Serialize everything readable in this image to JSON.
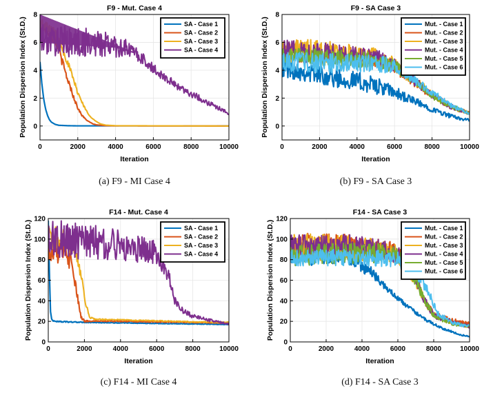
{
  "chart_data": [
    {
      "type": "line",
      "title": "F9 - Mut. Case 4",
      "caption": "(a) F9 - MI Case 4",
      "xlabel": "Iteration",
      "ylabel": "Population Dispersion Index (St.D.)",
      "xlim": [
        0,
        10000
      ],
      "ylim": [
        -1,
        8
      ],
      "xticks": [
        0,
        2000,
        4000,
        6000,
        8000,
        10000
      ],
      "yticks": [
        0,
        2,
        4,
        6,
        8
      ],
      "legend_position": "top-right",
      "series": [
        {
          "name": "SA - Case 1",
          "color": "#0072BD",
          "x": [
            0,
            100,
            200,
            300,
            400,
            500,
            600,
            800,
            1000,
            1500,
            2000,
            4000,
            10000
          ],
          "y": [
            4.6,
            3.0,
            1.9,
            1.2,
            0.75,
            0.45,
            0.28,
            0.12,
            0.05,
            0.02,
            0.01,
            0.01,
            0.01
          ],
          "noise": [
            0,
            0,
            0,
            0,
            0,
            0,
            0,
            0,
            0,
            0,
            0,
            0,
            0
          ]
        },
        {
          "name": "SA - Case 2",
          "color": "#D95319",
          "x": [
            0,
            400,
            800,
            1000,
            1200,
            1400,
            1600,
            1800,
            2000,
            2200,
            2400,
            2600,
            2800,
            3000,
            3400,
            4000,
            10000
          ],
          "y": [
            7.2,
            6.9,
            6.2,
            5.5,
            4.5,
            3.6,
            2.8,
            2.0,
            1.3,
            0.8,
            0.5,
            0.3,
            0.15,
            0.08,
            0.03,
            0.01,
            0.0
          ],
          "noise": [
            0.4,
            0.4,
            0.4,
            0.35,
            0.3,
            0.25,
            0.2,
            0.15,
            0.1,
            0.06,
            0.04,
            0.02,
            0.01,
            0,
            0,
            0,
            0
          ]
        },
        {
          "name": "SA - Case 3",
          "color": "#EDB120",
          "x": [
            0,
            400,
            800,
            1000,
            1200,
            1400,
            1600,
            1800,
            2000,
            2200,
            2400,
            2600,
            2800,
            3000,
            3200,
            3500,
            4000,
            10000
          ],
          "y": [
            7.4,
            7.0,
            6.6,
            6.2,
            5.6,
            4.8,
            4.0,
            3.2,
            2.4,
            1.8,
            1.2,
            0.8,
            0.5,
            0.3,
            0.15,
            0.06,
            0.02,
            0.0
          ],
          "noise": [
            0.5,
            0.45,
            0.45,
            0.4,
            0.35,
            0.3,
            0.25,
            0.2,
            0.15,
            0.1,
            0.08,
            0.05,
            0.03,
            0.02,
            0.01,
            0,
            0,
            0
          ]
        },
        {
          "name": "SA - Case 4",
          "color": "#7E2F8E",
          "x": [
            0,
            2000,
            4000,
            5000,
            6000,
            7000,
            8000,
            9000,
            10000
          ],
          "y": [
            6.2,
            6.0,
            5.8,
            5.3,
            4.1,
            3.1,
            2.3,
            1.6,
            0.9
          ],
          "noise": [
            1.1,
            1.1,
            0.9,
            0.5,
            0.35,
            0.3,
            0.25,
            0.2,
            0.1
          ],
          "band": {
            "x": [
              0,
              5000
            ],
            "top": [
              8.0,
              5.3
            ]
          }
        }
      ]
    },
    {
      "type": "line",
      "title": "F9 - SA Case 3",
      "caption": "(b) F9 - SA Case 3",
      "xlabel": "Iteration",
      "ylabel": "Population Dispersion Index (St.D.)",
      "xlim": [
        0,
        10000
      ],
      "ylim": [
        -1,
        8
      ],
      "xticks": [
        0,
        2000,
        4000,
        6000,
        8000,
        10000
      ],
      "yticks": [
        0,
        2,
        4,
        6,
        8
      ],
      "legend_position": "top-right",
      "series": [
        {
          "name": "Mut. - Case 1",
          "color": "#0072BD",
          "x": [
            0,
            2000,
            4000,
            5000,
            6000,
            7000,
            8000,
            9000,
            10000
          ],
          "y": [
            4.2,
            3.7,
            3.2,
            2.9,
            2.4,
            1.8,
            1.2,
            0.7,
            0.4
          ],
          "noise": [
            0.7,
            0.7,
            0.7,
            0.6,
            0.45,
            0.3,
            0.2,
            0.15,
            0.1
          ]
        },
        {
          "name": "Mut. - Case 2",
          "color": "#D95319",
          "x": [
            0,
            3000,
            5000,
            6000,
            7000,
            8000,
            9000,
            10000
          ],
          "y": [
            5.3,
            5.1,
            4.8,
            4.3,
            3.2,
            2.2,
            1.4,
            0.9
          ],
          "noise": [
            0.7,
            0.65,
            0.6,
            0.5,
            0.35,
            0.25,
            0.2,
            0.1
          ]
        },
        {
          "name": "Mut. - Case 3",
          "color": "#EDB120",
          "x": [
            0,
            3000,
            5000,
            6000,
            7000,
            8000,
            9000,
            10000
          ],
          "y": [
            5.5,
            5.2,
            4.9,
            4.4,
            3.3,
            2.3,
            1.4,
            0.9
          ],
          "noise": [
            0.9,
            0.8,
            0.7,
            0.55,
            0.35,
            0.25,
            0.2,
            0.1
          ]
        },
        {
          "name": "Mut. - Case 4",
          "color": "#7E2F8E",
          "x": [
            0,
            3000,
            5000,
            6000,
            7000,
            8000,
            9000,
            10000
          ],
          "y": [
            5.4,
            5.2,
            4.9,
            4.4,
            3.3,
            2.2,
            1.4,
            0.9
          ],
          "noise": [
            0.8,
            0.7,
            0.6,
            0.5,
            0.35,
            0.25,
            0.2,
            0.1
          ]
        },
        {
          "name": "Mut. - Case 5",
          "color": "#77AC30",
          "x": [
            0,
            3000,
            5000,
            6000,
            7000,
            8000,
            9000,
            10000
          ],
          "y": [
            5.0,
            4.9,
            4.7,
            4.3,
            3.3,
            2.2,
            1.4,
            0.9
          ],
          "noise": [
            0.6,
            0.6,
            0.55,
            0.45,
            0.3,
            0.25,
            0.2,
            0.1
          ]
        },
        {
          "name": "Mut. - Case 6",
          "color": "#4DBEEE",
          "x": [
            0,
            3000,
            5000,
            6000,
            7000,
            8000,
            9000,
            10000
          ],
          "y": [
            4.6,
            4.5,
            4.5,
            4.3,
            3.4,
            2.4,
            1.5,
            0.9
          ],
          "noise": [
            0.7,
            0.7,
            0.65,
            0.55,
            0.35,
            0.25,
            0.2,
            0.1
          ]
        }
      ]
    },
    {
      "type": "line",
      "title": "F14 - Mut. Case 4",
      "caption": "(c) F14 - MI Case 4",
      "xlabel": "Iteration",
      "ylabel": "Population Dispersion Index (St.D.)",
      "xlim": [
        0,
        10000
      ],
      "ylim": [
        0,
        120
      ],
      "xticks": [
        0,
        2000,
        4000,
        6000,
        8000,
        10000
      ],
      "yticks": [
        0,
        20,
        40,
        60,
        80,
        100,
        120
      ],
      "legend_position": "top-right",
      "series": [
        {
          "name": "SA - Case 1",
          "color": "#0072BD",
          "x": [
            0,
            60,
            120,
            200,
            400,
            1000,
            2000,
            4000,
            6000,
            8000,
            10000
          ],
          "y": [
            118,
            70,
            30,
            21,
            20,
            19.5,
            19,
            18.5,
            18,
            17.5,
            17
          ],
          "noise": [
            0,
            0,
            0,
            0.5,
            0.5,
            0.5,
            0.4,
            0.3,
            0.3,
            0.3,
            0.3
          ]
        },
        {
          "name": "SA - Case 2",
          "color": "#D95319",
          "x": [
            0,
            400,
            800,
            1000,
            1200,
            1400,
            1600,
            1800,
            2000,
            2500,
            4000,
            6000,
            8000,
            10000
          ],
          "y": [
            90,
            88,
            86,
            84,
            80,
            65,
            45,
            25,
            20,
            20.5,
            20,
            19.5,
            19,
            18.5
          ],
          "noise": [
            12,
            12,
            10,
            10,
            9,
            6,
            4,
            2,
            1,
            0.6,
            0.5,
            0.5,
            0.5,
            0.5
          ]
        },
        {
          "name": "SA - Case 3",
          "color": "#EDB120",
          "x": [
            0,
            400,
            800,
            1200,
            1500,
            1700,
            1900,
            2100,
            2300,
            2600,
            4000,
            6000,
            8000,
            10000
          ],
          "y": [
            100,
            100,
            98,
            96,
            92,
            75,
            55,
            35,
            24,
            22,
            21.5,
            20.5,
            19.5,
            19
          ],
          "noise": [
            12,
            12,
            12,
            10,
            8,
            6,
            4,
            2,
            1,
            0.6,
            0.5,
            0.5,
            0.5,
            0.5
          ]
        },
        {
          "name": "SA - Case 4",
          "color": "#7E2F8E",
          "x": [
            0,
            2000,
            4000,
            6000,
            6700,
            7000,
            7500,
            8000,
            9000,
            10000
          ],
          "y": [
            100,
            97,
            94,
            88,
            62,
            40,
            30,
            25,
            21,
            17
          ],
          "noise": [
            20,
            18,
            15,
            12,
            6,
            4,
            3,
            2,
            1.5,
            1
          ]
        }
      ]
    },
    {
      "type": "line",
      "title": "F14 - SA Case 3",
      "caption": "(d) F14 - SA Case 3",
      "xlabel": "Iteration",
      "ylabel": "Population Dispersion Index (St.D.)",
      "xlim": [
        0,
        10000
      ],
      "ylim": [
        0,
        120
      ],
      "xticks": [
        0,
        2000,
        4000,
        6000,
        8000,
        10000
      ],
      "yticks": [
        0,
        20,
        40,
        60,
        80,
        100,
        120
      ],
      "legend_position": "top-right",
      "series": [
        {
          "name": "Mut. - Case 1",
          "color": "#0072BD",
          "x": [
            0,
            2000,
            3500,
            4500,
            5500,
            6500,
            7500,
            8500,
            9500,
            10000
          ],
          "y": [
            85,
            84,
            80,
            68,
            50,
            35,
            22,
            13,
            7,
            5
          ],
          "noise": [
            10,
            10,
            8,
            5,
            3,
            2,
            1.5,
            1,
            0.8,
            0.5
          ]
        },
        {
          "name": "Mut. - Case 2",
          "color": "#D95319",
          "x": [
            0,
            3000,
            5000,
            6000,
            7000,
            7500,
            8000,
            9000,
            10000
          ],
          "y": [
            94,
            93,
            90,
            86,
            62,
            40,
            27,
            21,
            18
          ],
          "noise": [
            12,
            12,
            11,
            9,
            6,
            4,
            3,
            2,
            1.5
          ]
        },
        {
          "name": "Mut. - Case 3",
          "color": "#EDB120",
          "x": [
            0,
            3000,
            5000,
            6000,
            7000,
            7500,
            8000,
            9000,
            10000
          ],
          "y": [
            92,
            92,
            89,
            85,
            60,
            40,
            26,
            19,
            15
          ],
          "noise": [
            14,
            12,
            11,
            9,
            6,
            4,
            3,
            2,
            1.5
          ]
        },
        {
          "name": "Mut. - Case 4",
          "color": "#7E2F8E",
          "x": [
            0,
            3000,
            5000,
            6000,
            7000,
            7500,
            8000,
            9000,
            10000
          ],
          "y": [
            92,
            93,
            90,
            86,
            62,
            40,
            26,
            19,
            15
          ],
          "noise": [
            12,
            12,
            10,
            9,
            6,
            4,
            3,
            2,
            1.5
          ]
        },
        {
          "name": "Mut. - Case 5",
          "color": "#77AC30",
          "x": [
            0,
            3000,
            5000,
            6000,
            7000,
            7500,
            8000,
            9000,
            10000
          ],
          "y": [
            84,
            86,
            86,
            84,
            60,
            40,
            26,
            18,
            15
          ],
          "noise": [
            10,
            10,
            10,
            8,
            6,
            4,
            3,
            2,
            1.5
          ]
        },
        {
          "name": "Mut. - Case 6",
          "color": "#4DBEEE",
          "x": [
            0,
            3000,
            5000,
            6000,
            7000,
            7800,
            8200,
            9000,
            10000
          ],
          "y": [
            82,
            82,
            81,
            80,
            70,
            45,
            28,
            19,
            15
          ],
          "noise": [
            8,
            8,
            8,
            8,
            7,
            5,
            3,
            2,
            1.5
          ]
        }
      ]
    }
  ]
}
